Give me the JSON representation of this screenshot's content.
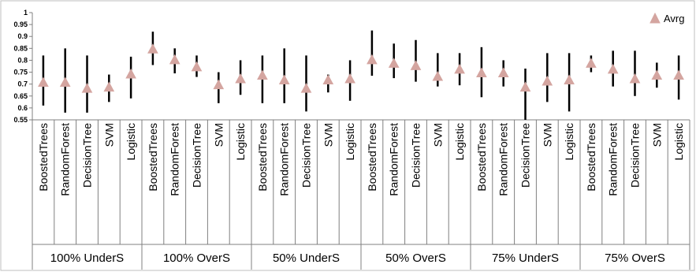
{
  "chart_data": {
    "type": "scatter",
    "groups": [
      "100% UnderS",
      "100% OverS",
      "50% UnderS",
      "50% OverS",
      "75% UnderS",
      "75% OverS"
    ],
    "classifiers": [
      "BoostedTrees",
      "RandomForest",
      "DecisionTree",
      "SVM",
      "Logistic"
    ],
    "series": [
      {
        "name": "Avrg",
        "color": "#d4a5a0",
        "marker": "triangle",
        "values": [
          0.705,
          0.705,
          0.68,
          0.685,
          0.74,
          0.845,
          0.8,
          0.77,
          0.695,
          0.72,
          0.735,
          0.715,
          0.68,
          0.715,
          0.72,
          0.8,
          0.785,
          0.775,
          0.73,
          0.76,
          0.745,
          0.745,
          0.685,
          0.71,
          0.715,
          0.785,
          0.76,
          0.72,
          0.735,
          0.735
        ],
        "low": [
          0.61,
          0.58,
          0.58,
          0.625,
          0.64,
          0.78,
          0.745,
          0.73,
          0.62,
          0.655,
          0.62,
          0.62,
          0.585,
          0.665,
          0.63,
          0.735,
          0.725,
          0.71,
          0.69,
          0.695,
          0.645,
          0.69,
          0.53,
          0.625,
          0.585,
          0.75,
          0.69,
          0.65,
          0.685,
          0.635
        ],
        "high": [
          0.82,
          0.85,
          0.82,
          0.74,
          0.815,
          0.92,
          0.85,
          0.82,
          0.75,
          0.8,
          0.82,
          0.85,
          0.82,
          0.74,
          0.8,
          0.925,
          0.87,
          0.885,
          0.83,
          0.83,
          0.855,
          0.8,
          0.765,
          0.83,
          0.83,
          0.82,
          0.84,
          0.84,
          0.79,
          0.82
        ]
      }
    ],
    "yticks": [
      "0.55",
      "0.6",
      "0.65",
      "0.7",
      "0.75",
      "0.8",
      "0.85",
      "0.9",
      "0.95",
      "1"
    ],
    "ylim": [
      0.55,
      1
    ],
    "title": "",
    "xlabel": "",
    "ylabel": "",
    "grid": false,
    "legend": "top-right"
  }
}
